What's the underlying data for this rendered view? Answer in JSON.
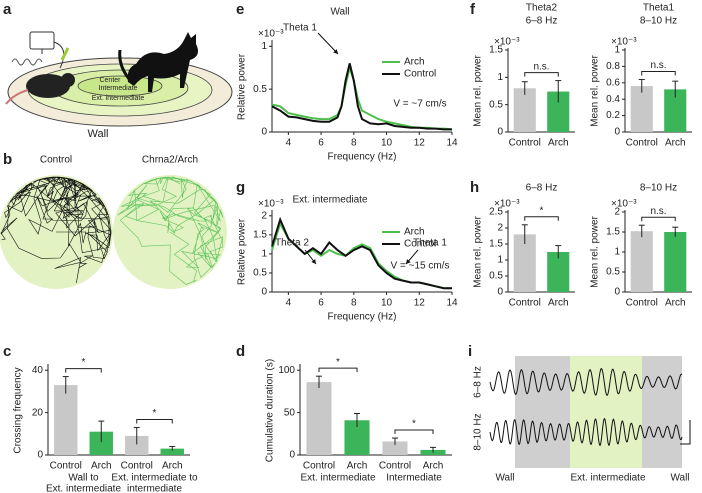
{
  "panel_letters": [
    "a",
    "b",
    "c",
    "d",
    "e",
    "f",
    "g",
    "h",
    "i"
  ],
  "arena": {
    "labels": [
      "Center",
      "Intermediate",
      "Ext. intermediate"
    ],
    "wall": "Wall"
  },
  "trajectories": [
    "Control",
    "Chrna2/Arch"
  ],
  "traces": {
    "rows": [
      "6–8 Hz",
      "8–10 Hz"
    ],
    "zones": [
      "Wall",
      "Ext. intermediate",
      "Wall"
    ]
  },
  "chart_data": [
    {
      "type": "line",
      "title": "Wall",
      "annotations": [
        "Theta 1",
        "V = ~7 cm/s"
      ],
      "xlabel": "Frequency (Hz)",
      "ylabel": "Relative power",
      "y_multiplier": "×10⁻³",
      "x": [
        3,
        3.5,
        4,
        4.5,
        5,
        5.5,
        6,
        6.5,
        7,
        7.25,
        7.5,
        7.75,
        8,
        8.25,
        8.5,
        9,
        9.5,
        10,
        10.5,
        11,
        11.5,
        12,
        12.5,
        13,
        13.5,
        14
      ],
      "series": [
        {
          "name": "Arch",
          "color": "#4cbf4c",
          "values": [
            0.32,
            0.3,
            0.22,
            0.2,
            0.18,
            0.16,
            0.15,
            0.15,
            0.2,
            0.3,
            0.55,
            0.75,
            0.6,
            0.38,
            0.25,
            0.2,
            0.15,
            0.12,
            0.1,
            0.08,
            0.06,
            0.05,
            0.05,
            0.04,
            0.04,
            0.03
          ]
        },
        {
          "name": "Control",
          "color": "#111111",
          "values": [
            0.3,
            0.25,
            0.18,
            0.17,
            0.15,
            0.13,
            0.12,
            0.12,
            0.17,
            0.3,
            0.6,
            0.8,
            0.6,
            0.3,
            0.15,
            0.1,
            0.09,
            0.1,
            0.07,
            0.06,
            0.05,
            0.05,
            0.04,
            0.04,
            0.03,
            0.03
          ]
        }
      ],
      "xlim": [
        3,
        14
      ],
      "xticks": [
        4,
        6,
        8,
        10,
        12,
        14
      ],
      "ylim": [
        0,
        1.05
      ],
      "yticks": [
        0,
        0.5,
        1
      ],
      "legend": "upper right"
    },
    {
      "type": "line",
      "title": "Ext. intermediate",
      "annotations": [
        "Theta 2",
        "Theta 1",
        "V = ~15 cm/s"
      ],
      "xlabel": "Frequency (Hz)",
      "ylabel": "Relative power",
      "y_multiplier": "×10⁻³",
      "x": [
        3,
        3.5,
        4,
        4.5,
        5,
        5.5,
        6,
        6.5,
        7,
        7.5,
        8,
        8.5,
        9,
        9.5,
        10,
        10.5,
        11,
        11.5,
        12,
        12.5,
        13,
        13.5,
        14
      ],
      "series": [
        {
          "name": "Arch",
          "color": "#4cbf4c",
          "values": [
            1.1,
            1.8,
            1.4,
            1.2,
            1.0,
            1.1,
            0.95,
            1.1,
            1.0,
            0.95,
            1.15,
            1.25,
            1.15,
            0.75,
            0.55,
            0.4,
            0.3,
            0.25,
            0.25,
            0.2,
            0.15,
            0.1,
            0.1
          ]
        },
        {
          "name": "Control",
          "color": "#111111",
          "values": [
            1.2,
            1.9,
            1.4,
            1.2,
            1.0,
            1.15,
            1.0,
            1.3,
            1.1,
            0.95,
            1.1,
            1.2,
            1.1,
            0.7,
            0.5,
            0.35,
            0.3,
            0.25,
            0.25,
            0.2,
            0.15,
            0.1,
            0.1
          ]
        }
      ],
      "xlim": [
        3,
        14
      ],
      "xticks": [
        4,
        6,
        8,
        10,
        12,
        14
      ],
      "ylim": [
        0,
        2.1
      ],
      "yticks": [
        0,
        0.5,
        1,
        1.5,
        2
      ],
      "legend": "upper right"
    },
    {
      "type": "bar",
      "ylabel": "Crossing frequency",
      "categories": [
        "Control",
        "Arch",
        "Control",
        "Arch"
      ],
      "group_labels": [
        [
          "Wall to",
          "Ext. intermediate"
        ],
        [
          "Ext. intermediate to",
          "intermediate"
        ]
      ],
      "values": [
        33,
        11,
        9,
        3
      ],
      "errors": [
        4,
        5,
        4,
        1
      ],
      "colors": [
        "#c8c8c8",
        "#3cb55a",
        "#c8c8c8",
        "#3cb55a"
      ],
      "significance": [
        "*",
        "*"
      ],
      "ylim": [
        0,
        42
      ],
      "yticks": [
        0,
        20,
        40
      ]
    },
    {
      "type": "bar",
      "ylabel": "Cumulative duration (s)",
      "categories": [
        "Control",
        "Arch",
        "Control",
        "Arch"
      ],
      "group_labels": [
        [
          "Ext. intermediate"
        ],
        [
          "Intermediate"
        ]
      ],
      "values": [
        86,
        41,
        16,
        6
      ],
      "errors": [
        7,
        8,
        4,
        3
      ],
      "colors": [
        "#c8c8c8",
        "#3cb55a",
        "#c8c8c8",
        "#3cb55a"
      ],
      "significance": [
        "*",
        "*"
      ],
      "ylim": [
        0,
        105
      ],
      "yticks": [
        0,
        50,
        100
      ]
    },
    {
      "type": "bar",
      "title": "Theta2",
      "subtitle": "6–8 Hz",
      "ylabel": "Mean rel. power",
      "y_multiplier": "×10⁻³",
      "categories": [
        "Control",
        "Arch"
      ],
      "values": [
        0.8,
        0.74
      ],
      "errors": [
        0.12,
        0.2
      ],
      "colors": [
        "#c8c8c8",
        "#3cb55a"
      ],
      "significance": [
        "n.s."
      ],
      "ylim": [
        0,
        1.5
      ],
      "yticks": [
        0,
        0.5,
        1,
        1.5
      ]
    },
    {
      "type": "bar",
      "title": "Theta1",
      "subtitle": "8–10 Hz",
      "ylabel": "Mean rel. power",
      "y_multiplier": "×10⁻³",
      "categories": [
        "Control",
        "Arch"
      ],
      "values": [
        0.56,
        0.52
      ],
      "errors": [
        0.08,
        0.1
      ],
      "colors": [
        "#c8c8c8",
        "#3cb55a"
      ],
      "significance": [
        "n.s."
      ],
      "ylim": [
        0,
        1
      ],
      "yticks": [
        0,
        0.2,
        0.4,
        0.6,
        0.8,
        1
      ]
    },
    {
      "type": "bar",
      "title": "6–8 Hz",
      "ylabel": "Mean rel. power",
      "y_multiplier": "×10⁻³",
      "categories": [
        "Control",
        "Arch"
      ],
      "values": [
        1.8,
        1.25
      ],
      "errors": [
        0.3,
        0.2
      ],
      "colors": [
        "#c8c8c8",
        "#3cb55a"
      ],
      "significance": [
        "*"
      ],
      "ylim": [
        0,
        2.5
      ],
      "yticks": [
        0,
        0.5,
        1,
        1.5,
        2,
        2.5
      ]
    },
    {
      "type": "bar",
      "title": "8–10 Hz",
      "ylabel": "Mean rel. power",
      "y_multiplier": "×10⁻³",
      "categories": [
        "Control",
        "Arch"
      ],
      "values": [
        1.52,
        1.5
      ],
      "errors": [
        0.15,
        0.12
      ],
      "colors": [
        "#c8c8c8",
        "#3cb55a"
      ],
      "significance": [
        "n.s."
      ],
      "ylim": [
        0,
        2
      ],
      "yticks": [
        0,
        0.5,
        1,
        1.5,
        2
      ]
    }
  ]
}
